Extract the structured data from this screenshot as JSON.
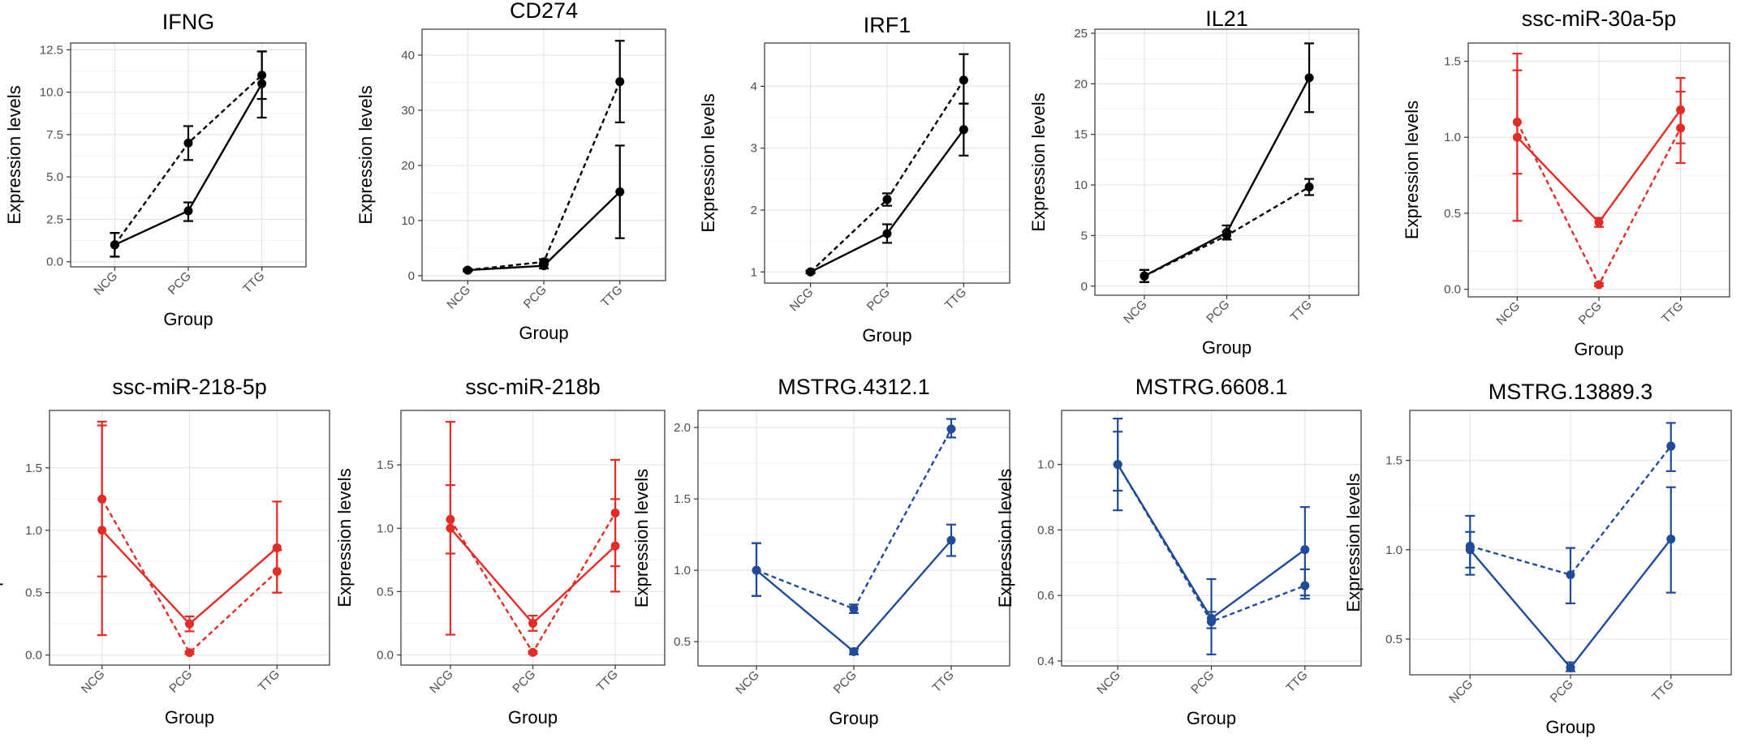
{
  "chart_data": [
    {
      "type": "line",
      "title": "IFNG",
      "xlabel": "Group",
      "ylabel": "Expression levels",
      "categories": [
        "NCG",
        "PCG",
        "TTG"
      ],
      "color": "#000000",
      "ylim": [
        -0.3,
        12.9
      ],
      "yticks": [
        0.0,
        2.5,
        5.0,
        7.5,
        10.0,
        12.5
      ],
      "ytick_labels": [
        "0.0",
        "2.5",
        "5.0",
        "7.5",
        "10.0",
        "12.5"
      ],
      "series": [
        {
          "name": "solid",
          "dash": false,
          "values": [
            1.0,
            3.0,
            10.5
          ],
          "err_low": [
            0.3,
            2.4,
            8.5
          ],
          "err_high": [
            1.7,
            3.5,
            12.4
          ]
        },
        {
          "name": "dashed",
          "dash": true,
          "values": [
            1.0,
            7.0,
            11.0
          ],
          "err_low": [
            0.3,
            6.0,
            9.6
          ],
          "err_high": [
            1.7,
            8.0,
            12.4
          ]
        }
      ]
    },
    {
      "type": "line",
      "title": "CD274",
      "xlabel": "Group",
      "ylabel": "Expression levels",
      "categories": [
        "NCG",
        "PCG",
        "TTG"
      ],
      "color": "#000000",
      "ylim": [
        -0.9,
        44.7
      ],
      "yticks": [
        0,
        10,
        20,
        30,
        40
      ],
      "ytick_labels": [
        "0",
        "10",
        "20",
        "30",
        "40"
      ],
      "series": [
        {
          "name": "solid",
          "dash": false,
          "values": [
            1.0,
            1.8,
            15.2
          ],
          "err_low": [
            0.8,
            1.3,
            6.8
          ],
          "err_high": [
            1.2,
            2.3,
            23.6
          ]
        },
        {
          "name": "dashed",
          "dash": true,
          "values": [
            1.0,
            2.5,
            35.2
          ],
          "err_low": [
            0.8,
            2.0,
            27.8
          ],
          "err_high": [
            1.2,
            3.0,
            42.6
          ]
        }
      ]
    },
    {
      "type": "line",
      "title": "IRF1",
      "xlabel": "Group",
      "ylabel": "Expression levels",
      "categories": [
        "NCG",
        "PCG",
        "TTG"
      ],
      "color": "#000000",
      "ylim": [
        0.82,
        4.7
      ],
      "yticks": [
        1,
        2,
        3,
        4
      ],
      "ytick_labels": [
        "1",
        "2",
        "3",
        "4"
      ],
      "series": [
        {
          "name": "solid",
          "dash": false,
          "values": [
            1.0,
            1.62,
            3.3
          ],
          "err_low": [
            0.98,
            1.47,
            2.88
          ],
          "err_high": [
            1.02,
            1.77,
            3.72
          ]
        },
        {
          "name": "dashed",
          "dash": true,
          "values": [
            1.0,
            2.17,
            4.1
          ],
          "err_low": [
            0.98,
            2.07,
            3.72
          ],
          "err_high": [
            1.02,
            2.27,
            4.52
          ]
        }
      ]
    },
    {
      "type": "line",
      "title": "IL21",
      "xlabel": "Group",
      "ylabel": "Expression levels",
      "categories": [
        "NCG",
        "PCG",
        "TTG"
      ],
      "color": "#000000",
      "ylim": [
        -0.9,
        25.4
      ],
      "yticks": [
        0,
        5,
        10,
        15,
        20,
        25
      ],
      "ytick_labels": [
        "0",
        "5",
        "10",
        "15",
        "20",
        "25"
      ],
      "series": [
        {
          "name": "solid",
          "dash": false,
          "values": [
            1.0,
            5.3,
            20.6
          ],
          "err_low": [
            0.4,
            4.6,
            17.2
          ],
          "err_high": [
            1.6,
            6.0,
            24.0
          ]
        },
        {
          "name": "dashed",
          "dash": true,
          "values": [
            1.0,
            5.0,
            9.8
          ],
          "err_low": [
            0.4,
            4.6,
            9.0
          ],
          "err_high": [
            1.6,
            5.4,
            10.6
          ]
        }
      ]
    },
    {
      "type": "line",
      "title": "ssc-miR-30a-5p",
      "xlabel": "Group",
      "ylabel": "Expression levels",
      "categories": [
        "NCG",
        "PCG",
        "TTG"
      ],
      "color": "#e32c26",
      "ylim": [
        -0.05,
        1.62
      ],
      "yticks": [
        0.0,
        0.5,
        1.0,
        1.5
      ],
      "ytick_labels": [
        "0.0",
        "0.5",
        "1.0",
        "1.5"
      ],
      "series": [
        {
          "name": "solid",
          "dash": false,
          "values": [
            1.0,
            0.44,
            1.18
          ],
          "err_low": [
            0.45,
            0.41,
            0.96
          ],
          "err_high": [
            1.55,
            0.47,
            1.39
          ]
        },
        {
          "name": "dashed",
          "dash": true,
          "values": [
            1.1,
            0.03,
            1.06
          ],
          "err_low": [
            0.76,
            0.02,
            0.83
          ],
          "err_high": [
            1.44,
            0.04,
            1.3
          ]
        }
      ]
    },
    {
      "type": "line",
      "title": "ssc-miR-218-5p",
      "xlabel": "Group",
      "ylabel": "Expression levels",
      "categories": [
        "NCG",
        "PCG",
        "TTG"
      ],
      "color": "#e32c26",
      "ylim": [
        -0.08,
        1.96
      ],
      "yticks": [
        0.0,
        0.5,
        1.0,
        1.5
      ],
      "ytick_labels": [
        "0.0",
        "0.5",
        "1.0",
        "1.5"
      ],
      "series": [
        {
          "name": "solid",
          "dash": false,
          "values": [
            1.0,
            0.25,
            0.86
          ],
          "err_low": [
            0.16,
            0.19,
            0.5
          ],
          "err_high": [
            1.84,
            0.31,
            1.23
          ]
        },
        {
          "name": "dashed",
          "dash": true,
          "values": [
            1.25,
            0.02,
            0.67
          ],
          "err_low": [
            0.63,
            0.01,
            0.5
          ],
          "err_high": [
            1.87,
            0.03,
            0.84
          ]
        }
      ]
    },
    {
      "type": "line",
      "title": "ssc-miR-218b",
      "xlabel": "Group",
      "ylabel": "Expression levels",
      "categories": [
        "NCG",
        "PCG",
        "TTG"
      ],
      "color": "#e32c26",
      "ylim": [
        -0.08,
        1.93
      ],
      "yticks": [
        0.0,
        0.5,
        1.0,
        1.5
      ],
      "ytick_labels": [
        "0.0",
        "0.5",
        "1.0",
        "1.5"
      ],
      "series": [
        {
          "name": "solid",
          "dash": false,
          "values": [
            1.0,
            0.25,
            0.86
          ],
          "err_low": [
            0.16,
            0.19,
            0.5
          ],
          "err_high": [
            1.84,
            0.31,
            1.23
          ]
        },
        {
          "name": "dashed",
          "dash": true,
          "values": [
            1.07,
            0.02,
            1.12
          ],
          "err_low": [
            0.8,
            0.01,
            0.7
          ],
          "err_high": [
            1.34,
            0.03,
            1.54
          ]
        }
      ]
    },
    {
      "type": "line",
      "title": "MSTRG.4312.1",
      "xlabel": "Group",
      "ylabel": "Expression levels",
      "categories": [
        "NCG",
        "PCG",
        "TTG"
      ],
      "color": "#1f4b99",
      "ylim": [
        0.33,
        2.12
      ],
      "yticks": [
        0.5,
        1.0,
        1.5,
        2.0
      ],
      "ytick_labels": [
        "0.5",
        "1.0",
        "1.5",
        "2.0"
      ],
      "series": [
        {
          "name": "solid",
          "dash": false,
          "values": [
            1.0,
            0.43,
            1.21
          ],
          "err_low": [
            0.82,
            0.41,
            1.1
          ],
          "err_high": [
            1.19,
            0.45,
            1.32
          ]
        },
        {
          "name": "dashed",
          "dash": true,
          "values": [
            1.0,
            0.73,
            1.99
          ],
          "err_low": [
            0.82,
            0.7,
            1.93
          ],
          "err_high": [
            1.19,
            0.76,
            2.06
          ]
        }
      ]
    },
    {
      "type": "line",
      "title": "MSTRG.6608.1",
      "xlabel": "Group",
      "ylabel": "Expression levels",
      "categories": [
        "NCG",
        "PCG",
        "TTG"
      ],
      "color": "#1f4b99",
      "ylim": [
        0.385,
        1.165
      ],
      "yticks": [
        0.4,
        0.6,
        0.8,
        1.0
      ],
      "ytick_labels": [
        "0.4",
        "0.6",
        "0.8",
        "1.0"
      ],
      "series": [
        {
          "name": "solid",
          "dash": false,
          "values": [
            1.0,
            0.53,
            0.74
          ],
          "err_low": [
            0.86,
            0.42,
            0.6
          ],
          "err_high": [
            1.14,
            0.65,
            0.87
          ]
        },
        {
          "name": "dashed",
          "dash": true,
          "values": [
            1.0,
            0.52,
            0.63
          ],
          "err_low": [
            0.92,
            0.5,
            0.59
          ],
          "err_high": [
            1.1,
            0.55,
            0.68
          ]
        }
      ]
    },
    {
      "type": "line",
      "title": "MSTRG.13889.3",
      "xlabel": "Group",
      "ylabel": "Expression levels",
      "categories": [
        "NCG",
        "PCG",
        "TTG"
      ],
      "color": "#1f4b99",
      "ylim": [
        0.3,
        1.78
      ],
      "yticks": [
        0.5,
        1.0,
        1.5
      ],
      "ytick_labels": [
        "0.5",
        "1.0",
        "1.5"
      ],
      "series": [
        {
          "name": "solid",
          "dash": false,
          "values": [
            1.0,
            0.34,
            1.06
          ],
          "err_low": [
            0.9,
            0.32,
            0.76
          ],
          "err_high": [
            1.1,
            0.37,
            1.35
          ]
        },
        {
          "name": "dashed",
          "dash": true,
          "values": [
            1.02,
            0.86,
            1.58
          ],
          "err_low": [
            0.86,
            0.7,
            1.44
          ],
          "err_high": [
            1.19,
            1.01,
            1.71
          ]
        }
      ]
    }
  ]
}
